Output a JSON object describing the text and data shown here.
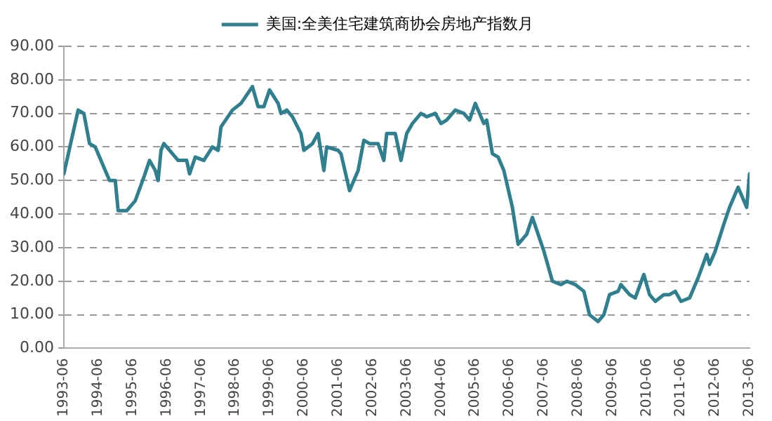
{
  "chart_data": {
    "type": "line",
    "legend": "top",
    "grid": "y",
    "marker": "none",
    "line_style": "solid",
    "xlim": [
      "1993-06",
      "2013-06"
    ],
    "xticks": [
      "1993-06",
      "1994-06",
      "1995-06",
      "1996-06",
      "1997-06",
      "1998-06",
      "1999-06",
      "2000-06",
      "2001-06",
      "2002-06",
      "2003-06",
      "2004-06",
      "2005-06",
      "2006-06",
      "2007-06",
      "2008-06",
      "2009-06",
      "2010-06",
      "2011-06",
      "2012-06",
      "2013-06"
    ],
    "ylim": [
      0,
      90
    ],
    "yticks": [
      {
        "value": 0,
        "label": "0.00"
      },
      {
        "value": 10,
        "label": "10.00"
      },
      {
        "value": 20,
        "label": "20.00"
      },
      {
        "value": 30,
        "label": "30.00"
      },
      {
        "value": 40,
        "label": "40.00"
      },
      {
        "value": 50,
        "label": "50.00"
      },
      {
        "value": 60,
        "label": "60.00"
      },
      {
        "value": 70,
        "label": "70.00"
      },
      {
        "value": 80,
        "label": "80.00"
      },
      {
        "value": 90,
        "label": "90.00"
      }
    ],
    "x": [
      "1993-06",
      "1993-11",
      "1994-01",
      "1994-03",
      "1994-05",
      "1994-08",
      "1994-10",
      "1994-12",
      "1995-01",
      "1995-04",
      "1995-07",
      "1995-10",
      "1995-12",
      "1996-02",
      "1996-03",
      "1996-04",
      "1996-05",
      "1996-10",
      "1997-01",
      "1997-02",
      "1997-04",
      "1997-07",
      "1997-10",
      "1997-12",
      "1998-01",
      "1998-05",
      "1998-08",
      "1998-12",
      "1999-02",
      "1999-04",
      "1999-06",
      "1999-09",
      "1999-10",
      "1999-12",
      "2000-02",
      "2000-05",
      "2000-06",
      "2000-09",
      "2000-11",
      "2001-01",
      "2001-02",
      "2001-06",
      "2001-07",
      "2001-10",
      "2002-01",
      "2002-03",
      "2002-05",
      "2002-08",
      "2002-10",
      "2002-11",
      "2003-02",
      "2003-04",
      "2003-06",
      "2003-08",
      "2003-11",
      "2004-01",
      "2004-04",
      "2004-06",
      "2004-08",
      "2004-11",
      "2005-02",
      "2005-04",
      "2005-06",
      "2005-09",
      "2005-10",
      "2005-12",
      "2006-02",
      "2006-04",
      "2006-07",
      "2006-09",
      "2006-12",
      "2007-02",
      "2007-04",
      "2007-06",
      "2007-09",
      "2007-12",
      "2008-02",
      "2008-05",
      "2008-08",
      "2008-10",
      "2009-01",
      "2009-03",
      "2009-05",
      "2009-08",
      "2009-09",
      "2009-12",
      "2010-02",
      "2010-05",
      "2010-07",
      "2010-09",
      "2010-12",
      "2011-02",
      "2011-04",
      "2011-06",
      "2011-09",
      "2011-12",
      "2012-03",
      "2012-04",
      "2012-06",
      "2012-09",
      "2012-11",
      "2013-02",
      "2013-05",
      "2013-06"
    ],
    "series": [
      {
        "name": "美国:全美住宅建筑商协会房地产指数月",
        "color": "#2f7f8e",
        "values": [
          52,
          71,
          70,
          61,
          60,
          54,
          50,
          50,
          41,
          41,
          44,
          51,
          56,
          53,
          50,
          59,
          61,
          56,
          56,
          52,
          57,
          56,
          60,
          59,
          66,
          71,
          73,
          78,
          72,
          72,
          77,
          73,
          70,
          71,
          69,
          64,
          59,
          61,
          64,
          53,
          60,
          59,
          58,
          47,
          53,
          62,
          61,
          61,
          56,
          64,
          64,
          56,
          64,
          67,
          70,
          69,
          70,
          67,
          68,
          71,
          70,
          68,
          73,
          67,
          68,
          58,
          57,
          53,
          42,
          31,
          34,
          39,
          34,
          29,
          20,
          19,
          20,
          19,
          17,
          10,
          8,
          10,
          16,
          17,
          19,
          16,
          15,
          22,
          16,
          14,
          16,
          16,
          17,
          14,
          15,
          21,
          28,
          25,
          29,
          37,
          42,
          48,
          42,
          52
        ]
      }
    ]
  }
}
